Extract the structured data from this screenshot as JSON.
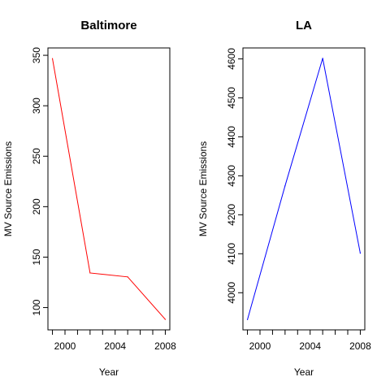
{
  "chart_data": [
    {
      "type": "line",
      "title": "Baltimore",
      "xlabel": "Year",
      "ylabel": "MV Source Emissions",
      "x": [
        1999,
        2002,
        2005,
        2008
      ],
      "series": [
        {
          "values": [
            346.8,
            134.3,
            130.4,
            88.3
          ],
          "color": "#ff0000"
        }
      ],
      "xlim": [
        1998.64,
        2008.36
      ],
      "ylim": [
        77.9,
        357.3
      ],
      "xticks": [
        1999,
        2000,
        2001,
        2002,
        2003,
        2004,
        2005,
        2006,
        2007,
        2008
      ],
      "xtick_labels": [
        "",
        "2000",
        "",
        "",
        "",
        "2004",
        "",
        "",
        "",
        "2008"
      ],
      "yticks": [
        100,
        150,
        200,
        250,
        300,
        350
      ],
      "ytick_labels": [
        "100",
        "150",
        "200",
        "250",
        "300",
        "350"
      ],
      "grid": false,
      "legend": "none"
    },
    {
      "type": "line",
      "title": "LA",
      "xlabel": "Year",
      "ylabel": "MV Source Emissions",
      "x": [
        1999,
        2002,
        2005,
        2008
      ],
      "series": [
        {
          "values": [
            3931.1,
            4274.3,
            4601.4,
            4101.3
          ],
          "color": "#0000ff"
        }
      ],
      "xlim": [
        1998.64,
        2008.36
      ],
      "ylim": [
        3904.7,
        4628.0
      ],
      "xticks": [
        1999,
        2000,
        2001,
        2002,
        2003,
        2004,
        2005,
        2006,
        2007,
        2008
      ],
      "xtick_labels": [
        "",
        "2000",
        "",
        "",
        "",
        "2004",
        "",
        "",
        "",
        "2008"
      ],
      "yticks": [
        4000,
        4100,
        4200,
        4300,
        4400,
        4500,
        4600
      ],
      "ytick_labels": [
        "4000",
        "4100",
        "4200",
        "4300",
        "4400",
        "4500",
        "4600"
      ],
      "grid": false,
      "legend": "none"
    }
  ]
}
